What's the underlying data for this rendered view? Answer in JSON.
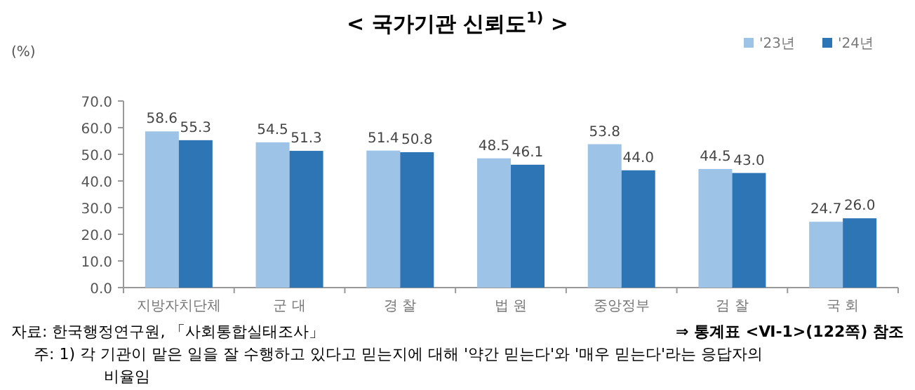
{
  "chart_data": {
    "type": "bar",
    "title": "< 국가기관 신뢰도$^{1)}$ >",
    "ylabel": "(%)",
    "categories": [
      "지방자치단체",
      "군 대",
      "경 찰",
      "법 원",
      "중앙정부",
      "검 찰",
      "국 회"
    ],
    "series": [
      {
        "name": "'23년",
        "color": "#9dc3e6",
        "values": [
          58.6,
          54.5,
          51.4,
          48.5,
          53.8,
          44.5,
          24.7
        ]
      },
      {
        "name": "'24년",
        "color": "#2e75b6",
        "values": [
          55.3,
          51.3,
          50.8,
          46.1,
          44.0,
          43.0,
          26.0
        ],
        "value_labels": [
          "55.3",
          "51.3",
          "50.8",
          "46.1",
          "44.0",
          "43.0",
          "26.0"
        ]
      }
    ],
    "ylim": [
      0,
      70
    ],
    "yticks": [
      {
        "value": 0,
        "label": "0.0"
      },
      {
        "value": 10,
        "label": "10.0"
      },
      {
        "value": 20,
        "label": "20.0"
      },
      {
        "value": 30,
        "label": "30.0"
      },
      {
        "value": 40,
        "label": "40.0"
      },
      {
        "value": 50,
        "label": "50.0"
      },
      {
        "value": 60,
        "label": "60.0"
      },
      {
        "value": 70,
        "label": "70.0"
      }
    ],
    "data_labels": true,
    "legend": "top right",
    "annotations": [
      "자료: 한국행정연구원, 「사회통합실태조사」",
      "⇒ 통계표 <Ⅵ-1>(122쪽) 참조",
      "주: 1) 각 기관이 맡은 일을 잘 수행하고 있다고 믿는지에 대해 '약간 믿는다'와 '매우 믿는다'라는 응답자의 비율임"
    ]
  }
}
